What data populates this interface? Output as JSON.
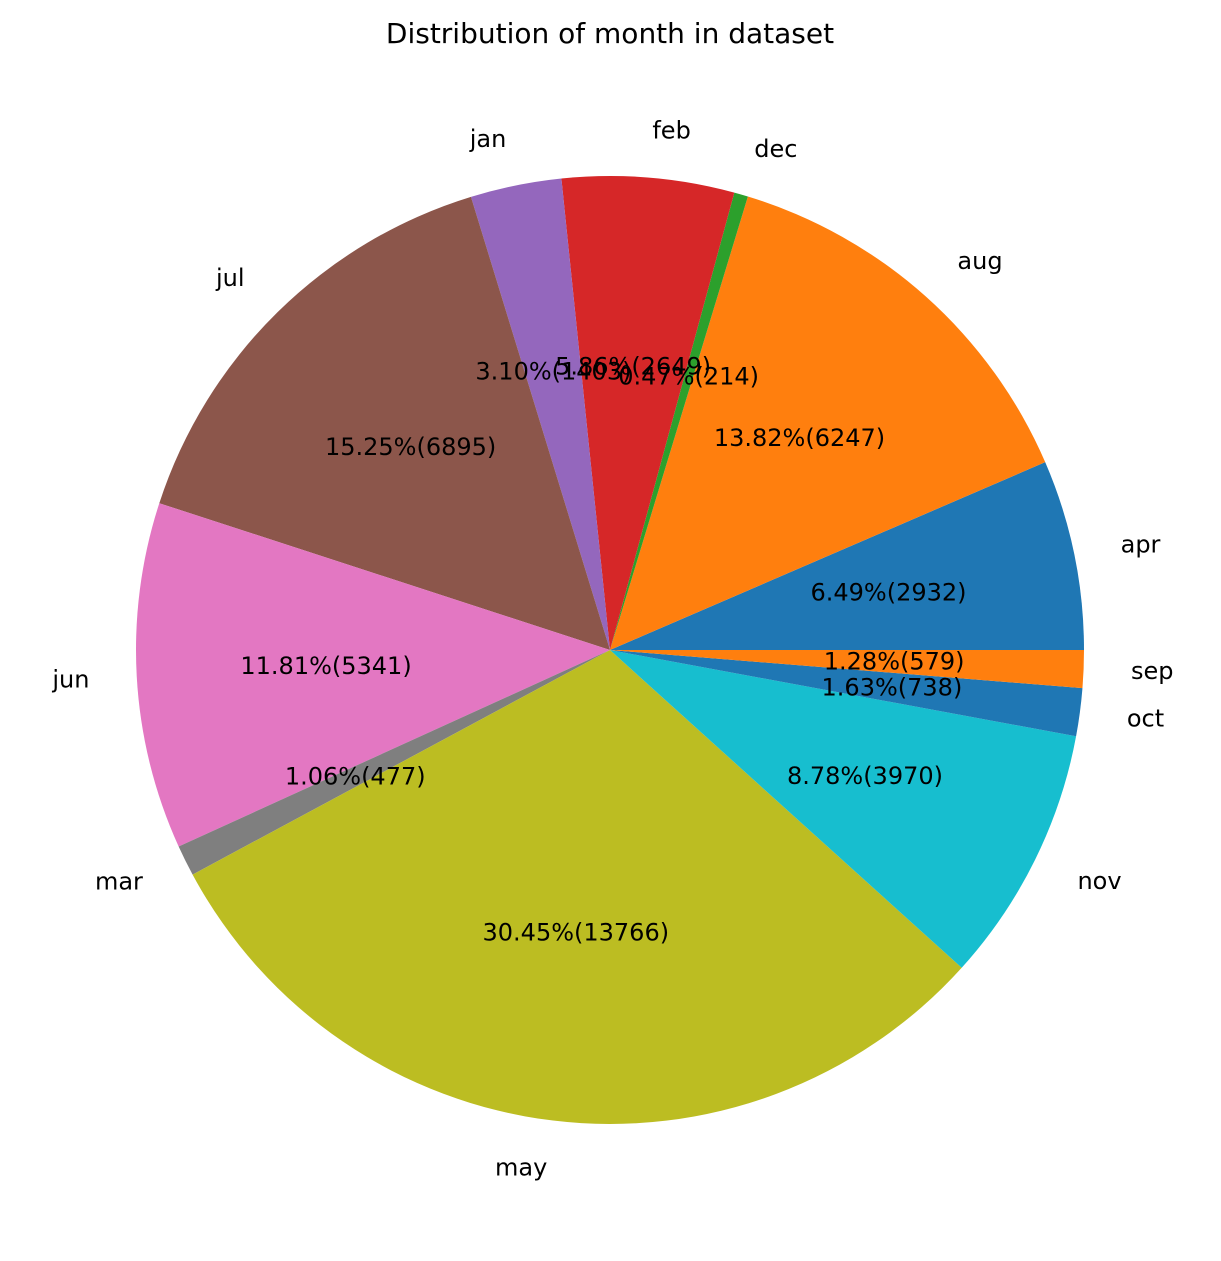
{
  "chart_data": {
    "type": "pie",
    "title": "Distribution of month in dataset",
    "slices": [
      {
        "label": "apr",
        "value": 2932,
        "pct_label": "6.49%(2932)",
        "color": "#1f77b4"
      },
      {
        "label": "aug",
        "value": 6247,
        "pct_label": "13.82%(6247)",
        "color": "#ff7f0e"
      },
      {
        "label": "dec",
        "value": 214,
        "pct_label": "0.47%(214)",
        "color": "#2ca02c"
      },
      {
        "label": "feb",
        "value": 2649,
        "pct_label": "5.86%(2649)",
        "color": "#d62728"
      },
      {
        "label": "jan",
        "value": 1403,
        "pct_label": "3.10%(1403)",
        "color": "#9467bd"
      },
      {
        "label": "jul",
        "value": 6895,
        "pct_label": "15.25%(6895)",
        "color": "#8c564b"
      },
      {
        "label": "jun",
        "value": 5341,
        "pct_label": "11.81%(5341)",
        "color": "#e377c2"
      },
      {
        "label": "mar",
        "value": 477,
        "pct_label": "1.06%(477)",
        "color": "#7f7f7f"
      },
      {
        "label": "may",
        "value": 13766,
        "pct_label": "30.45%(13766)",
        "color": "#bcbd22"
      },
      {
        "label": "nov",
        "value": 3970,
        "pct_label": "8.78%(3970)",
        "color": "#17becf"
      },
      {
        "label": "oct",
        "value": 738,
        "pct_label": "1.63%(738)",
        "color": "#1f77b4"
      },
      {
        "label": "sep",
        "value": 579,
        "pct_label": "1.28%(579)",
        "color": "#ff7f0e"
      }
    ]
  }
}
